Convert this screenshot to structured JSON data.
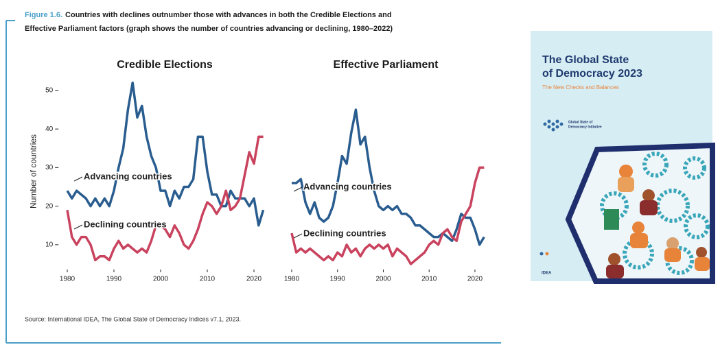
{
  "figure": {
    "label": "Figure 1.6.",
    "caption_line1": "Countries with declines outnumber those with advances in both the Credible Elections and",
    "caption_line2": "Effective Parliament factors (graph shows the number of countries advancing or declining, 1980–2022)",
    "source": "Source: International IDEA, The Global State of Democracy Indices v7.1, 2023."
  },
  "cover": {
    "title_line1": "The Global State",
    "title_line2": "of Democracy 2023",
    "subtitle": "The New Checks and Balances",
    "initiative_line1": "Global State of",
    "initiative_line2": "Democracy Initiative",
    "publisher": "IDEA"
  },
  "chart_data": [
    {
      "type": "line",
      "title": "Credible Elections",
      "y_label": "Number of countries",
      "x": [
        1980,
        1981,
        1982,
        1983,
        1984,
        1985,
        1986,
        1987,
        1988,
        1989,
        1990,
        1991,
        1992,
        1993,
        1994,
        1995,
        1996,
        1997,
        1998,
        1999,
        2000,
        2001,
        2002,
        2003,
        2004,
        2005,
        2006,
        2007,
        2008,
        2009,
        2010,
        2011,
        2012,
        2013,
        2014,
        2015,
        2016,
        2017,
        2018,
        2019,
        2020,
        2021,
        2022
      ],
      "xlim": [
        1979,
        2023
      ],
      "xticks": [
        1980,
        1990,
        2000,
        2010,
        2020
      ],
      "ylim": [
        5,
        53
      ],
      "yticks": [
        10,
        20,
        30,
        40,
        50
      ],
      "series": [
        {
          "name": "Advancing countries",
          "color": "#2a5d8f",
          "values": [
            24,
            22,
            24,
            23,
            22,
            20,
            22,
            20,
            22,
            20,
            24,
            30,
            35,
            45,
            52,
            43,
            46,
            38,
            33,
            30,
            24,
            24,
            20,
            24,
            22,
            25,
            25,
            27,
            38,
            38,
            29,
            23,
            23,
            20,
            20,
            24,
            22,
            22,
            22,
            20,
            22,
            15,
            19
          ]
        },
        {
          "name": "Declining countries",
          "color": "#c9425e",
          "values": [
            19,
            12,
            10,
            12,
            12,
            10,
            6,
            7,
            7,
            6,
            9,
            11,
            9,
            10,
            9,
            8,
            9,
            8,
            11,
            15,
            15,
            14,
            12,
            15,
            13,
            10,
            9,
            11,
            14,
            18,
            21,
            20,
            18,
            20,
            24,
            19,
            20,
            22,
            28,
            34,
            31,
            38,
            38
          ]
        }
      ]
    },
    {
      "type": "line",
      "title": "Effective Parliament",
      "x": [
        1980,
        1981,
        1982,
        1983,
        1984,
        1985,
        1986,
        1987,
        1988,
        1989,
        1990,
        1991,
        1992,
        1993,
        1994,
        1995,
        1996,
        1997,
        1998,
        1999,
        2000,
        2001,
        2002,
        2003,
        2004,
        2005,
        2006,
        2007,
        2008,
        2009,
        2010,
        2011,
        2012,
        2013,
        2014,
        2015,
        2016,
        2017,
        2018,
        2019,
        2020,
        2021,
        2022
      ],
      "xlim": [
        1979,
        2023
      ],
      "xticks": [
        1980,
        1990,
        2000,
        2010,
        2020
      ],
      "ylim": [
        5,
        53
      ],
      "series": [
        {
          "name": "Advancing countries",
          "color": "#2a5d8f",
          "values": [
            26,
            26,
            27,
            21,
            18,
            21,
            17,
            16,
            17,
            20,
            26,
            33,
            31,
            39,
            45,
            36,
            38,
            30,
            24,
            20,
            19,
            20,
            19,
            20,
            18,
            18,
            17,
            15,
            15,
            14,
            13,
            12,
            12,
            13,
            12,
            11,
            14,
            18,
            17,
            17,
            14,
            10,
            12
          ]
        },
        {
          "name": "Declining countries",
          "color": "#c9425e",
          "values": [
            13,
            8,
            9,
            8,
            9,
            8,
            7,
            6,
            7,
            6,
            8,
            7,
            10,
            8,
            9,
            7,
            9,
            10,
            9,
            10,
            9,
            10,
            7,
            9,
            8,
            7,
            5,
            6,
            7,
            8,
            10,
            11,
            10,
            13,
            14,
            12,
            11,
            16,
            18,
            20,
            26,
            30,
            30
          ]
        }
      ]
    }
  ]
}
